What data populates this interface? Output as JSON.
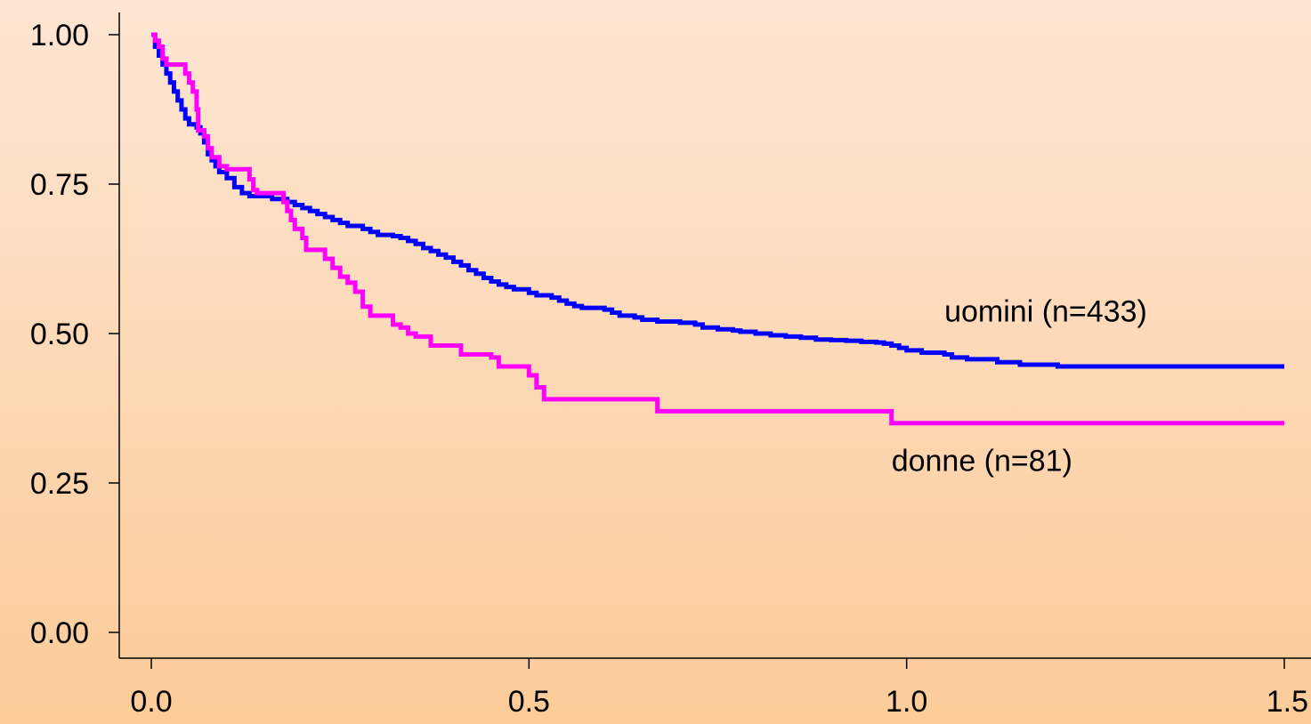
{
  "chart_data": {
    "type": "line",
    "step": true,
    "title": "",
    "xlabel": "",
    "ylabel": "",
    "xlim": [
      0.0,
      1.5
    ],
    "ylim": [
      0.0,
      1.0
    ],
    "x_ticks": [
      "0.0",
      "0.5",
      "1.0",
      "1.5"
    ],
    "x_tick_values": [
      0.0,
      0.5,
      1.0,
      1.5
    ],
    "y_ticks": [
      "0.00",
      "0.25",
      "0.50",
      "0.75",
      "1.00"
    ],
    "y_tick_values": [
      0.0,
      0.25,
      0.5,
      0.75,
      1.0
    ],
    "grid": false,
    "series": [
      {
        "name": "uomini (n=433)",
        "color": "#0000ff",
        "points": [
          [
            0.0,
            1.0
          ],
          [
            0.005,
            0.98
          ],
          [
            0.01,
            0.965
          ],
          [
            0.015,
            0.95
          ],
          [
            0.02,
            0.935
          ],
          [
            0.025,
            0.92
          ],
          [
            0.03,
            0.905
          ],
          [
            0.035,
            0.89
          ],
          [
            0.04,
            0.875
          ],
          [
            0.045,
            0.86
          ],
          [
            0.05,
            0.85
          ],
          [
            0.06,
            0.845
          ],
          [
            0.065,
            0.835
          ],
          [
            0.07,
            0.82
          ],
          [
            0.075,
            0.8
          ],
          [
            0.08,
            0.79
          ],
          [
            0.085,
            0.78
          ],
          [
            0.09,
            0.77
          ],
          [
            0.1,
            0.76
          ],
          [
            0.11,
            0.745
          ],
          [
            0.12,
            0.735
          ],
          [
            0.13,
            0.73
          ],
          [
            0.15,
            0.73
          ],
          [
            0.16,
            0.725
          ],
          [
            0.18,
            0.72
          ],
          [
            0.19,
            0.715
          ],
          [
            0.2,
            0.71
          ],
          [
            0.21,
            0.705
          ],
          [
            0.22,
            0.7
          ],
          [
            0.23,
            0.695
          ],
          [
            0.24,
            0.69
          ],
          [
            0.25,
            0.685
          ],
          [
            0.26,
            0.68
          ],
          [
            0.28,
            0.675
          ],
          [
            0.29,
            0.67
          ],
          [
            0.3,
            0.665
          ],
          [
            0.32,
            0.663
          ],
          [
            0.33,
            0.66
          ],
          [
            0.34,
            0.655
          ],
          [
            0.35,
            0.65
          ],
          [
            0.36,
            0.643
          ],
          [
            0.37,
            0.638
          ],
          [
            0.38,
            0.632
          ],
          [
            0.39,
            0.627
          ],
          [
            0.4,
            0.62
          ],
          [
            0.41,
            0.614
          ],
          [
            0.42,
            0.606
          ],
          [
            0.43,
            0.6
          ],
          [
            0.44,
            0.593
          ],
          [
            0.45,
            0.587
          ],
          [
            0.46,
            0.582
          ],
          [
            0.47,
            0.578
          ],
          [
            0.48,
            0.574
          ],
          [
            0.5,
            0.568
          ],
          [
            0.51,
            0.564
          ],
          [
            0.53,
            0.56
          ],
          [
            0.54,
            0.555
          ],
          [
            0.55,
            0.55
          ],
          [
            0.56,
            0.546
          ],
          [
            0.57,
            0.543
          ],
          [
            0.6,
            0.54
          ],
          [
            0.61,
            0.535
          ],
          [
            0.62,
            0.53
          ],
          [
            0.64,
            0.527
          ],
          [
            0.65,
            0.523
          ],
          [
            0.67,
            0.52
          ],
          [
            0.69,
            0.52
          ],
          [
            0.7,
            0.518
          ],
          [
            0.72,
            0.515
          ],
          [
            0.73,
            0.51
          ],
          [
            0.75,
            0.507
          ],
          [
            0.77,
            0.505
          ],
          [
            0.78,
            0.503
          ],
          [
            0.8,
            0.5
          ],
          [
            0.82,
            0.497
          ],
          [
            0.84,
            0.495
          ],
          [
            0.86,
            0.493
          ],
          [
            0.88,
            0.49
          ],
          [
            0.9,
            0.489
          ],
          [
            0.92,
            0.488
          ],
          [
            0.94,
            0.486
          ],
          [
            0.96,
            0.485
          ],
          [
            0.97,
            0.483
          ],
          [
            0.98,
            0.48
          ],
          [
            0.99,
            0.476
          ],
          [
            1.0,
            0.472
          ],
          [
            1.02,
            0.468
          ],
          [
            1.05,
            0.465
          ],
          [
            1.06,
            0.46
          ],
          [
            1.08,
            0.457
          ],
          [
            1.12,
            0.452
          ],
          [
            1.15,
            0.448
          ],
          [
            1.2,
            0.445
          ],
          [
            1.5,
            0.445
          ]
        ]
      },
      {
        "name": "donne (n=81)",
        "color": "#ff00ff",
        "points": [
          [
            0.0,
            1.0
          ],
          [
            0.005,
            0.99
          ],
          [
            0.01,
            0.98
          ],
          [
            0.015,
            0.96
          ],
          [
            0.02,
            0.95
          ],
          [
            0.03,
            0.95
          ],
          [
            0.04,
            0.95
          ],
          [
            0.045,
            0.935
          ],
          [
            0.05,
            0.92
          ],
          [
            0.055,
            0.905
          ],
          [
            0.06,
            0.875
          ],
          [
            0.062,
            0.84
          ],
          [
            0.07,
            0.83
          ],
          [
            0.075,
            0.81
          ],
          [
            0.08,
            0.795
          ],
          [
            0.09,
            0.78
          ],
          [
            0.1,
            0.775
          ],
          [
            0.11,
            0.775
          ],
          [
            0.12,
            0.775
          ],
          [
            0.13,
            0.758
          ],
          [
            0.135,
            0.74
          ],
          [
            0.14,
            0.735
          ],
          [
            0.155,
            0.735
          ],
          [
            0.17,
            0.735
          ],
          [
            0.175,
            0.72
          ],
          [
            0.18,
            0.705
          ],
          [
            0.185,
            0.69
          ],
          [
            0.19,
            0.675
          ],
          [
            0.2,
            0.66
          ],
          [
            0.205,
            0.64
          ],
          [
            0.22,
            0.64
          ],
          [
            0.23,
            0.625
          ],
          [
            0.24,
            0.61
          ],
          [
            0.25,
            0.595
          ],
          [
            0.26,
            0.585
          ],
          [
            0.27,
            0.57
          ],
          [
            0.28,
            0.545
          ],
          [
            0.29,
            0.53
          ],
          [
            0.3,
            0.53
          ],
          [
            0.32,
            0.515
          ],
          [
            0.33,
            0.51
          ],
          [
            0.34,
            0.5
          ],
          [
            0.35,
            0.495
          ],
          [
            0.36,
            0.495
          ],
          [
            0.37,
            0.48
          ],
          [
            0.4,
            0.48
          ],
          [
            0.41,
            0.465
          ],
          [
            0.44,
            0.465
          ],
          [
            0.45,
            0.46
          ],
          [
            0.46,
            0.445
          ],
          [
            0.48,
            0.445
          ],
          [
            0.5,
            0.43
          ],
          [
            0.51,
            0.41
          ],
          [
            0.52,
            0.39
          ],
          [
            0.66,
            0.39
          ],
          [
            0.67,
            0.37
          ],
          [
            0.97,
            0.37
          ],
          [
            0.98,
            0.35
          ],
          [
            1.5,
            0.35
          ]
        ]
      }
    ],
    "annotations": [
      {
        "text": "uomini (n=433)",
        "x": 1.05,
        "y": 0.52,
        "series": "uomini (n=433)"
      },
      {
        "text": "donne (n=81)",
        "x": 0.98,
        "y": 0.27,
        "series": "donne (n=81)"
      }
    ]
  }
}
